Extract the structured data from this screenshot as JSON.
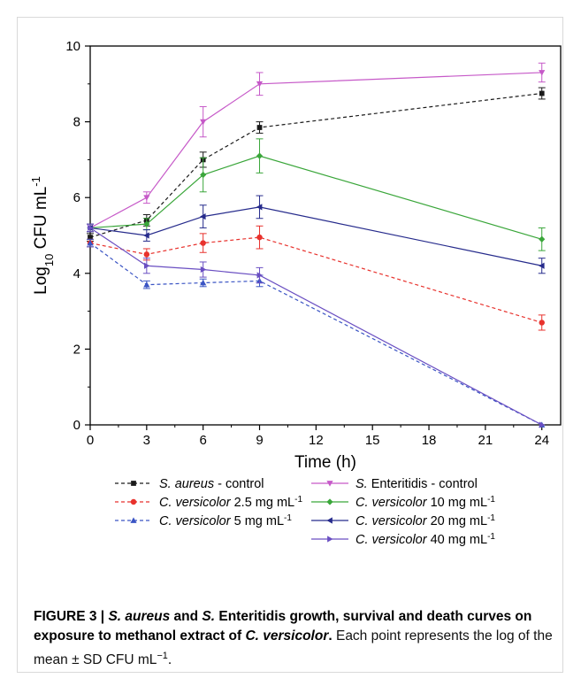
{
  "chart_data": {
    "type": "line",
    "xlabel": "Time (h)",
    "ylabel_base": "Log",
    "ylabel_sub": "10",
    "ylabel_rest": " CFU mL",
    "ylabel_sup": "-1",
    "xlim": [
      0,
      25
    ],
    "ylim": [
      0,
      10
    ],
    "x_ticks": [
      0,
      3,
      6,
      9,
      12,
      15,
      18,
      21,
      24
    ],
    "y_ticks": [
      0,
      2,
      4,
      6,
      8,
      10
    ],
    "grid": false,
    "legend_position": "bottom",
    "series": [
      {
        "id": "sa",
        "legend_italic": "S. aureus",
        "legend_rest": " - control",
        "legend_sup": "",
        "color": "#1a1a1a",
        "dash": "4,3",
        "marker": "square",
        "x": [
          0,
          3,
          6,
          9,
          24
        ],
        "y": [
          4.95,
          5.4,
          7.0,
          7.85,
          8.75
        ],
        "err": [
          0.1,
          0.15,
          0.2,
          0.15,
          0.15
        ]
      },
      {
        "id": "se",
        "legend_italic": "S.",
        "legend_rest": " Enteritidis - control",
        "legend_sup": "",
        "color": "#c659c8",
        "dash": "",
        "marker": "triangle-down",
        "x": [
          0,
          3,
          6,
          9,
          24
        ],
        "y": [
          5.2,
          6.0,
          8.0,
          9.0,
          9.3
        ],
        "err": [
          0.1,
          0.15,
          0.4,
          0.3,
          0.25
        ]
      },
      {
        "id": "cv25",
        "legend_italic": "C. versicolor",
        "legend_rest": " 2.5 mg mL",
        "legend_sup": "-1",
        "color": "#e8322d",
        "dash": "4,3",
        "marker": "circle",
        "x": [
          0,
          3,
          6,
          9,
          24
        ],
        "y": [
          4.8,
          4.5,
          4.8,
          4.95,
          2.7
        ],
        "err": [
          0.1,
          0.15,
          0.25,
          0.3,
          0.2
        ]
      },
      {
        "id": "cv10",
        "legend_italic": "C. versicolor",
        "legend_rest": " 10 mg mL",
        "legend_sup": "-1",
        "color": "#3aa63a",
        "dash": "",
        "marker": "diamond",
        "x": [
          0,
          3,
          6,
          9,
          24
        ],
        "y": [
          5.2,
          5.3,
          6.6,
          7.1,
          4.9
        ],
        "err": [
          0.1,
          0.15,
          0.45,
          0.45,
          0.3
        ]
      },
      {
        "id": "cv5",
        "legend_italic": "C. versicolor",
        "legend_rest": " 5 mg mL",
        "legend_sup": "-1",
        "color": "#3a54c4",
        "dash": "4,3",
        "marker": "triangle-up",
        "x": [
          0,
          3,
          6,
          9,
          24
        ],
        "y": [
          4.8,
          3.7,
          3.75,
          3.8,
          0.0
        ],
        "err": [
          0.1,
          0.1,
          0.1,
          0.15,
          0.0
        ]
      },
      {
        "id": "cv20",
        "legend_italic": "C. versicolor",
        "legend_rest": " 20 mg mL",
        "legend_sup": "-1",
        "color": "#262b8c",
        "dash": "",
        "marker": "triangle-left",
        "x": [
          0,
          3,
          6,
          9,
          24
        ],
        "y": [
          5.2,
          5.0,
          5.5,
          5.75,
          4.2
        ],
        "err": [
          0.1,
          0.15,
          0.3,
          0.3,
          0.2
        ]
      },
      {
        "id": "cv40",
        "legend_italic": "C. versicolor",
        "legend_rest": " 40 mg mL",
        "legend_sup": "-1",
        "color": "#6a4fc2",
        "dash": "",
        "marker": "triangle-right",
        "x": [
          0,
          3,
          6,
          9,
          24
        ],
        "y": [
          5.2,
          4.2,
          4.1,
          3.95,
          0.0
        ],
        "err": [
          0.1,
          0.2,
          0.2,
          0.2,
          0.0
        ]
      }
    ]
  },
  "caption": {
    "label": "FIGURE 3 | ",
    "title_parts": [
      {
        "text": "S. aureus",
        "italic": true
      },
      {
        "text": " and ",
        "italic": false
      },
      {
        "text": "S.",
        "italic": true
      },
      {
        "text": " Enteritidis growth, survival and death curves on exposure to methanol extract of ",
        "italic": false
      },
      {
        "text": "C. versicolor",
        "italic": true
      },
      {
        "text": ".",
        "italic": false
      }
    ],
    "body": " Each point represents the log of the mean ± SD CFU mL",
    "body_sup": "−1",
    "body_end": "."
  }
}
